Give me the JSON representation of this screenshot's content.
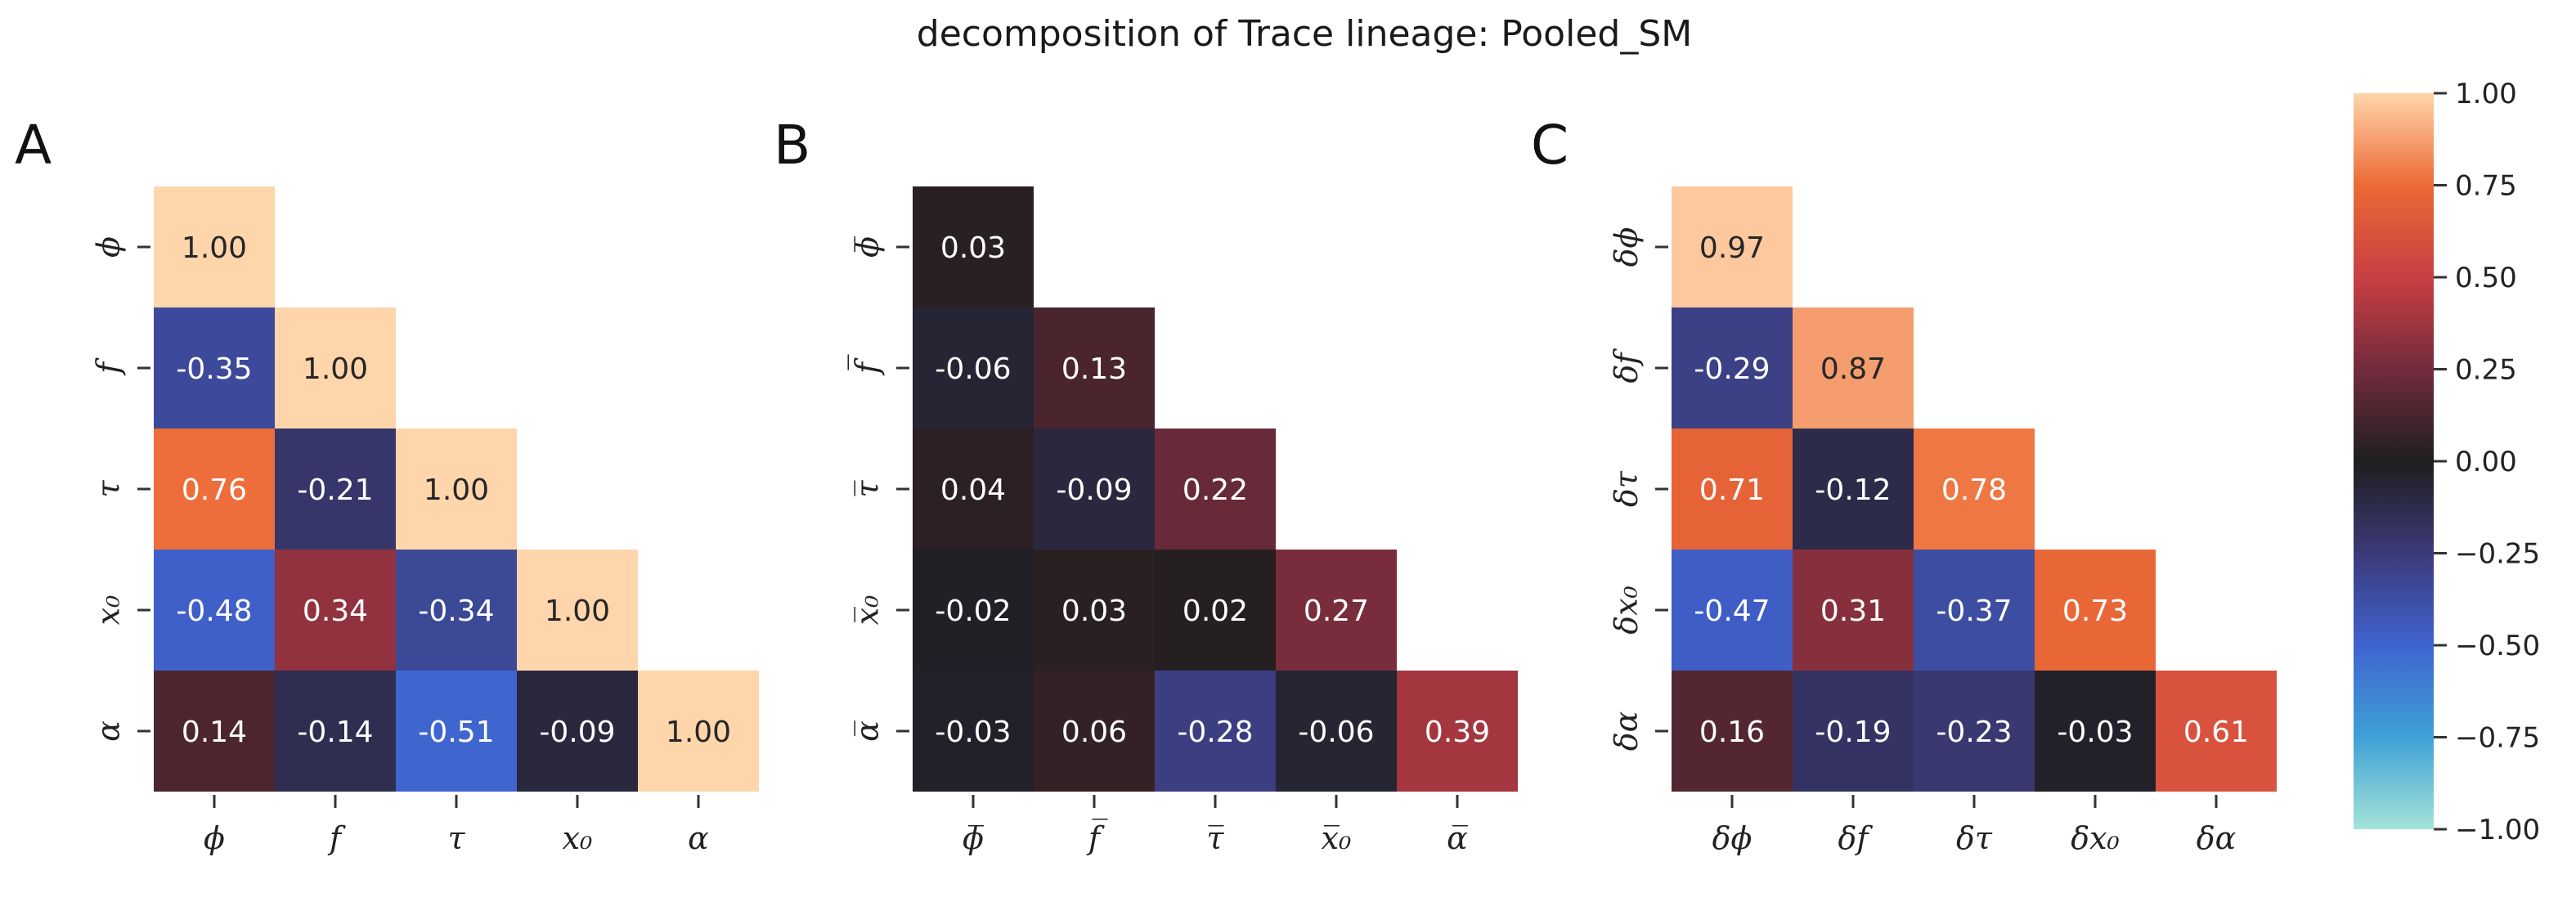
{
  "title": "decomposition of Trace lineage: Pooled_SM",
  "colorbar": {
    "ticks": [
      1.0,
      0.75,
      0.5,
      0.25,
      0.0,
      -0.25,
      -0.5,
      -0.75,
      -1.0
    ],
    "tick_labels": [
      "1.00",
      "0.75",
      "0.50",
      "0.25",
      "0.00",
      "−0.25",
      "−0.50",
      "−0.75",
      "−1.00"
    ],
    "vmin": -1.0,
    "vmax": 1.0,
    "colormap": "icefire",
    "colormap_stops": [
      [
        -1.0,
        "#a4e4d8"
      ],
      [
        -0.75,
        "#3fa1d6"
      ],
      [
        -0.5,
        "#3f63cf"
      ],
      [
        -0.25,
        "#3b3a78"
      ],
      [
        0.0,
        "#1f1e1f"
      ],
      [
        0.25,
        "#722b3c"
      ],
      [
        0.5,
        "#c93f42"
      ],
      [
        0.75,
        "#ec6a36"
      ],
      [
        1.0,
        "#ffd5ab"
      ]
    ]
  },
  "chart_data": [
    {
      "type": "heatmap",
      "panel": "A",
      "labels": [
        "ϕ",
        "f",
        "τ",
        "x₀",
        "α"
      ],
      "matrix": [
        [
          1.0,
          null,
          null,
          null,
          null
        ],
        [
          -0.35,
          1.0,
          null,
          null,
          null
        ],
        [
          0.76,
          -0.21,
          1.0,
          null,
          null
        ],
        [
          -0.48,
          0.34,
          -0.34,
          1.0,
          null
        ],
        [
          0.14,
          -0.14,
          -0.51,
          -0.09,
          1.0
        ]
      ],
      "cell_labels": [
        [
          "1.00",
          "",
          "",
          "",
          ""
        ],
        [
          "-0.35",
          "1.00",
          "",
          "",
          ""
        ],
        [
          "0.76",
          "-0.21",
          "1.00",
          "",
          ""
        ],
        [
          "-0.48",
          "0.34",
          "-0.34",
          "1.00",
          ""
        ],
        [
          "0.14",
          "-0.14",
          "-0.51",
          "-0.09",
          "1.00"
        ]
      ]
    },
    {
      "type": "heatmap",
      "panel": "B",
      "labels": [
        "ϕ̅",
        "f̅",
        "τ̅",
        "x̅₀",
        "α̅"
      ],
      "matrix": [
        [
          0.03,
          null,
          null,
          null,
          null
        ],
        [
          -0.06,
          0.13,
          null,
          null,
          null
        ],
        [
          0.04,
          -0.09,
          0.22,
          null,
          null
        ],
        [
          -0.02,
          0.03,
          0.02,
          0.27,
          null
        ],
        [
          -0.03,
          0.06,
          -0.28,
          -0.06,
          0.39
        ]
      ],
      "cell_labels": [
        [
          "0.03",
          "",
          "",
          "",
          ""
        ],
        [
          "-0.06",
          "0.13",
          "",
          "",
          ""
        ],
        [
          "0.04",
          "-0.09",
          "0.22",
          "",
          ""
        ],
        [
          "-0.02",
          "0.03",
          "0.02",
          "0.27",
          ""
        ],
        [
          "-0.03",
          "0.06",
          "-0.28",
          "-0.06",
          "0.39"
        ]
      ]
    },
    {
      "type": "heatmap",
      "panel": "C",
      "labels": [
        "δϕ",
        "δf",
        "δτ",
        "δx₀",
        "δα"
      ],
      "matrix": [
        [
          0.97,
          null,
          null,
          null,
          null
        ],
        [
          -0.29,
          0.87,
          null,
          null,
          null
        ],
        [
          0.71,
          -0.12,
          0.78,
          null,
          null
        ],
        [
          -0.47,
          0.31,
          -0.37,
          0.73,
          null
        ],
        [
          0.16,
          -0.19,
          -0.23,
          -0.03,
          0.61
        ]
      ],
      "cell_labels": [
        [
          "0.97",
          "",
          "",
          "",
          ""
        ],
        [
          "-0.29",
          "0.87",
          "",
          "",
          ""
        ],
        [
          "0.71",
          "-0.12",
          "0.78",
          "",
          ""
        ],
        [
          "-0.47",
          "0.31",
          "-0.37",
          "0.73",
          ""
        ],
        [
          "0.16",
          "-0.19",
          "-0.23",
          "-0.03",
          "0.61"
        ]
      ]
    }
  ]
}
